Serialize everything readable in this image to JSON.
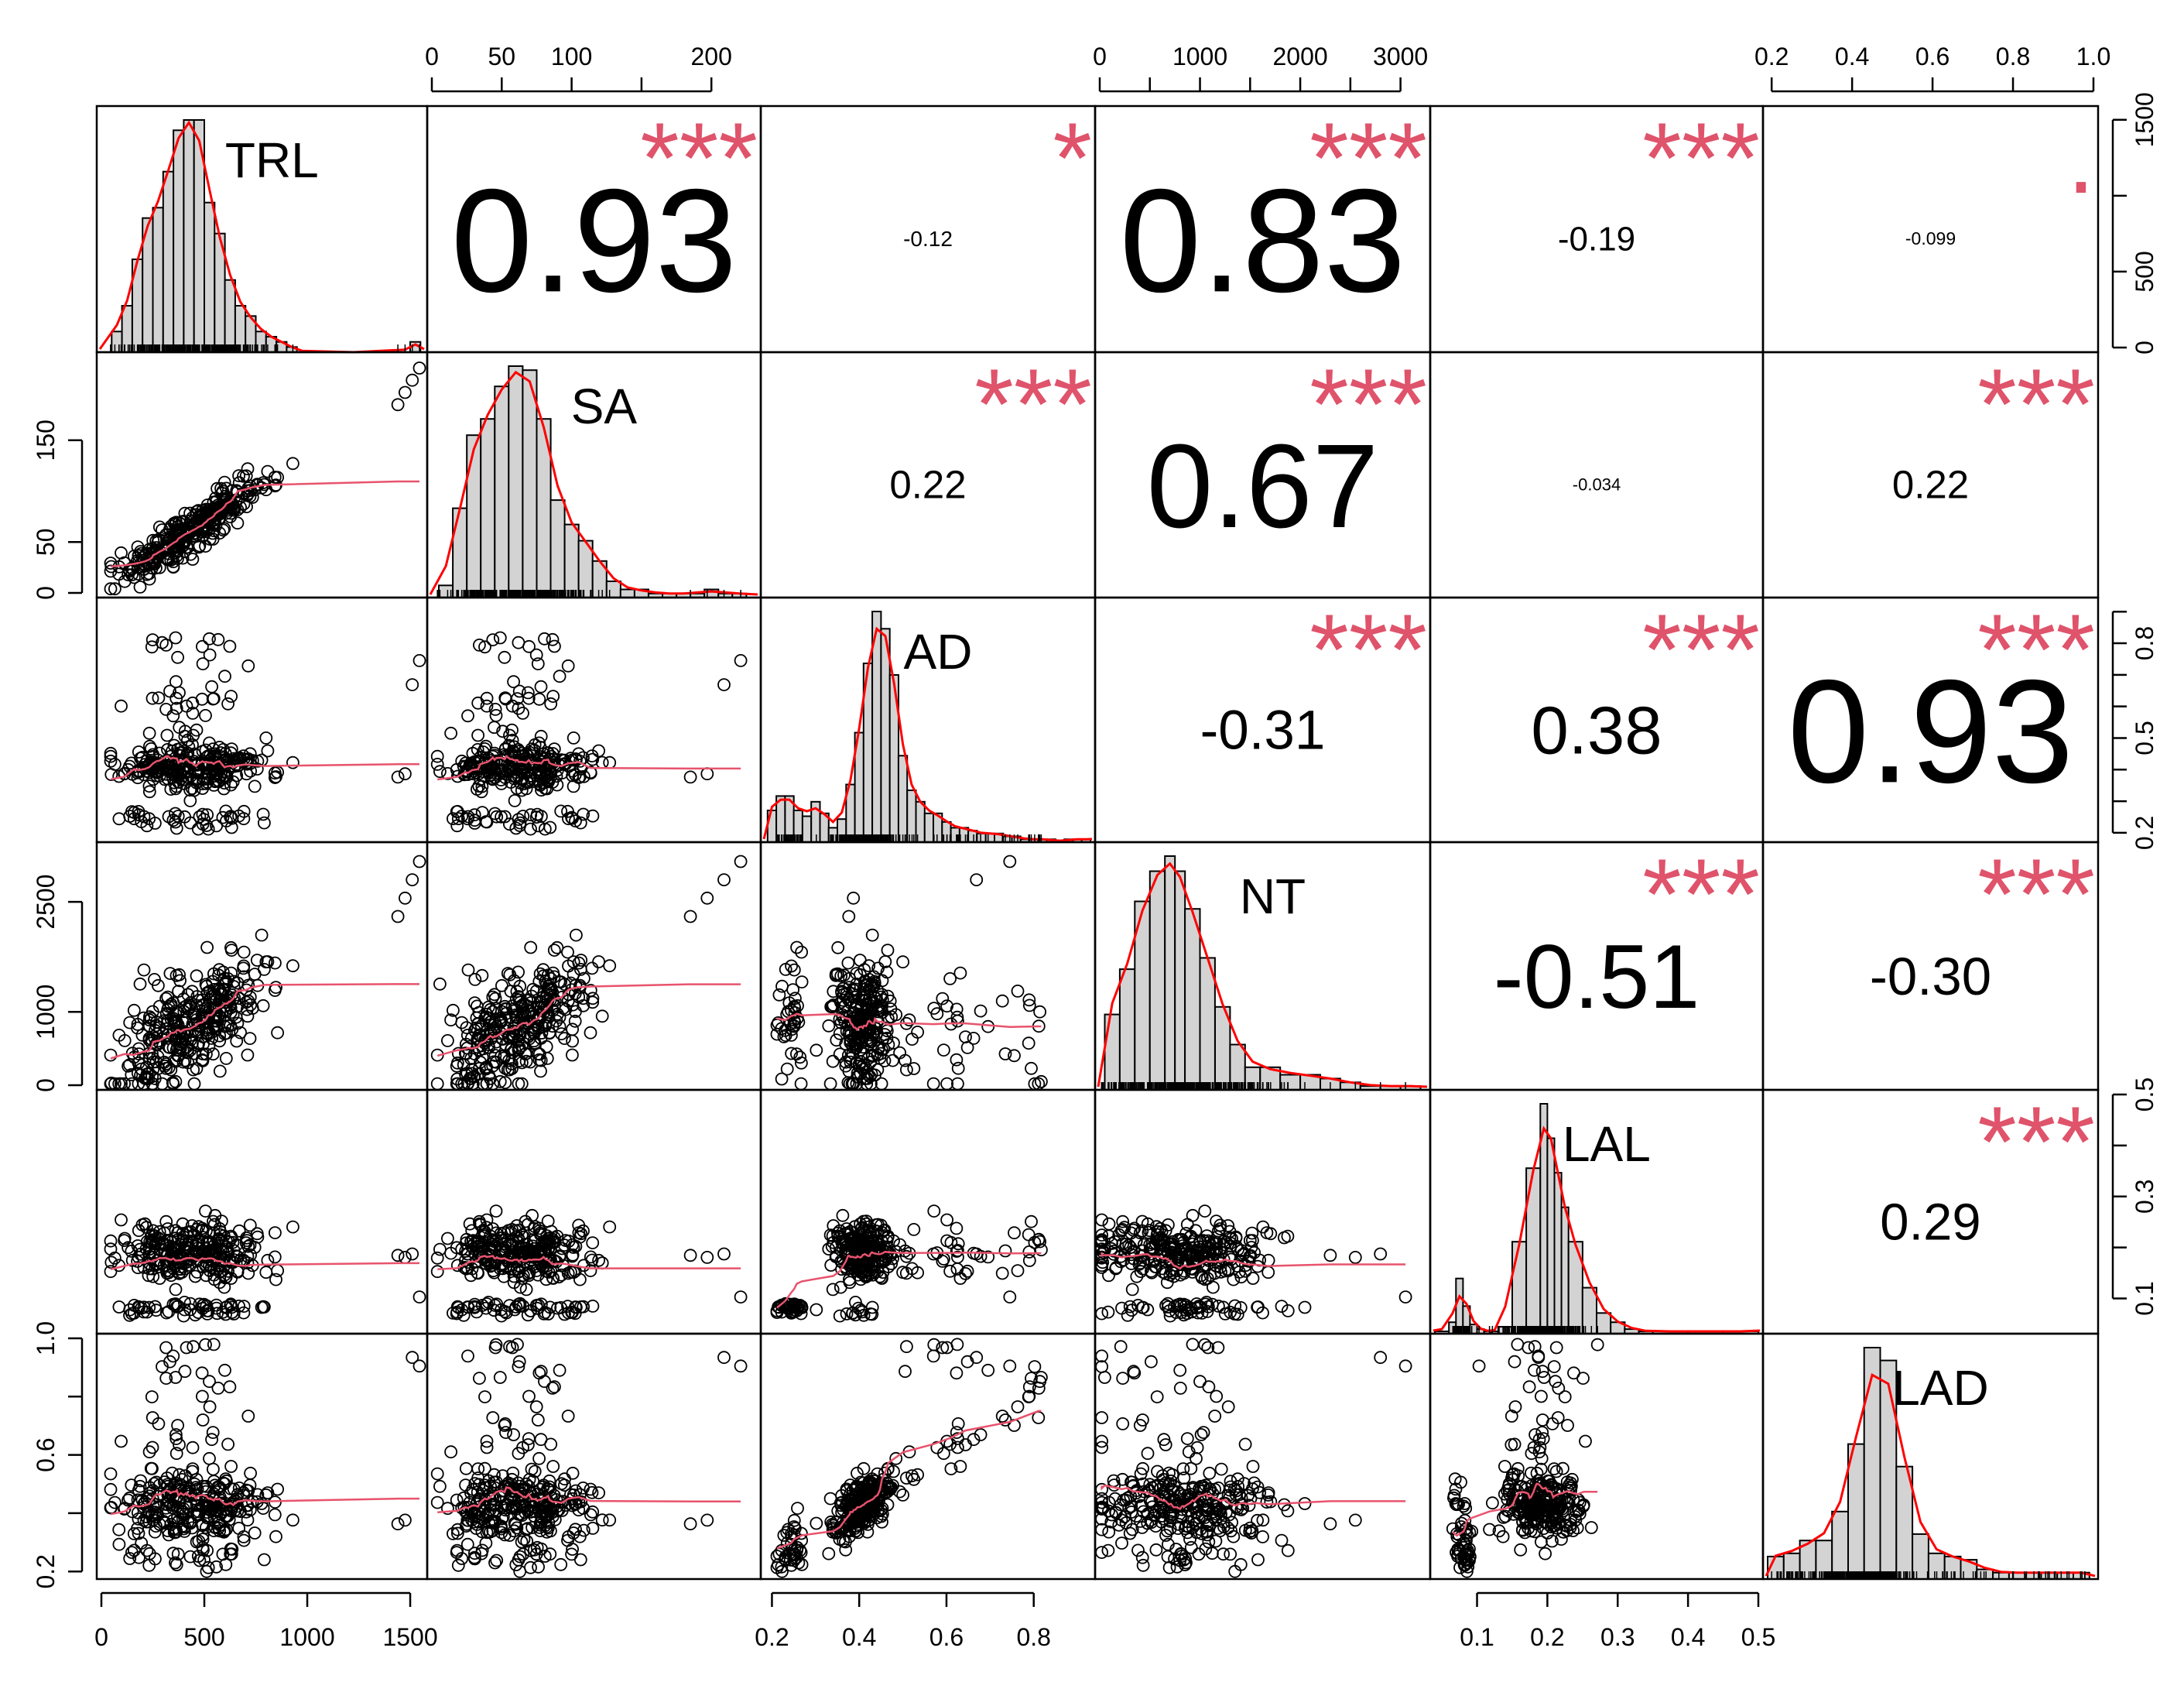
{
  "chart_data": {
    "type": "scatter-matrix",
    "variables": [
      "TRL",
      "SA",
      "AD",
      "NT",
      "LAL",
      "LAD"
    ],
    "colors": {
      "hist_fill": "#d3d3d3",
      "smooth": "#ff0000",
      "loess": "#e8536d",
      "stars": "#df536b",
      "points": "#000000",
      "text": "#000000"
    },
    "axes": {
      "TRL": {
        "range": [
          0,
          1560
        ],
        "ticks": [
          0,
          500,
          1000,
          1500
        ],
        "tick_labels": [
          "0",
          "500",
          "1000",
          "1500"
        ]
      },
      "SA": {
        "range": [
          0,
          232
        ],
        "ticks": [
          0,
          50,
          150
        ],
        "tick_labels": [
          "0",
          "50",
          "150"
        ],
        "top_ticks": [
          0,
          50,
          100,
          150,
          200
        ],
        "top_tick_labels": [
          "0",
          "50",
          "100",
          "",
          "200"
        ]
      },
      "AD": {
        "range": [
          0.185,
          0.93
        ],
        "ticks": [
          0.2,
          0.4,
          0.6,
          0.8
        ],
        "tick_labels": [
          "0.2",
          "0.4",
          "0.6",
          "0.8"
        ],
        "right_ticks": [
          0.2,
          0.3,
          0.4,
          0.5,
          0.6,
          0.7,
          0.8,
          0.9
        ],
        "right_tick_labels": [
          "0.2",
          "",
          "",
          "0.5",
          "",
          "",
          "0.8",
          ""
        ]
      },
      "NT": {
        "range": [
          0,
          3250
        ],
        "ticks": [
          0,
          1000,
          2500
        ],
        "tick_labels": [
          "0",
          "1000",
          "2500"
        ],
        "top_ticks": [
          0,
          500,
          1000,
          1500,
          2000,
          2500,
          3000
        ],
        "top_tick_labels": [
          "0",
          "",
          "1000",
          "",
          "2000",
          "",
          "3000"
        ]
      },
      "LAL": {
        "range": [
          0.04,
          0.5
        ],
        "ticks": [
          0.1,
          0.2,
          0.3,
          0.4,
          0.5
        ],
        "tick_labels": [
          "0.1",
          "0.2",
          "0.3",
          "0.4",
          "0.5"
        ],
        "right_ticks": [
          0.1,
          0.2,
          0.3,
          0.4,
          0.5
        ],
        "right_tick_labels": [
          "0.1",
          "",
          "0.3",
          "",
          "0.5"
        ]
      },
      "LAD": {
        "range": [
          0.19,
          1.0
        ],
        "ticks": [
          0.2,
          0.6,
          1.0
        ],
        "tick_labels": [
          "0.2",
          "0.6",
          "1.0"
        ],
        "left_ticks": [
          0.2,
          0.4,
          0.6,
          0.8,
          1.0
        ],
        "left_tick_labels": [
          "0.2",
          "",
          "0.6",
          "",
          "1.0"
        ],
        "top_ticks": [
          0.2,
          0.4,
          0.6,
          0.8,
          1.0
        ],
        "top_tick_labels": [
          "0.2",
          "0.4",
          "0.6",
          "0.8",
          "1.0"
        ]
      }
    },
    "right_axis_row1": {
      "ticks": [
        0,
        500,
        1000,
        1500
      ],
      "tick_labels": [
        "0",
        "500",
        "",
        "1500"
      ]
    },
    "correlations": [
      {
        "row": 0,
        "col": 1,
        "r": "0.93",
        "stars": "***"
      },
      {
        "row": 0,
        "col": 2,
        "r": "-0.12",
        "stars": "*"
      },
      {
        "row": 0,
        "col": 3,
        "r": "0.83",
        "stars": "***"
      },
      {
        "row": 0,
        "col": 4,
        "r": "-0.19",
        "stars": "***"
      },
      {
        "row": 0,
        "col": 5,
        "r": "-0.099",
        "stars": "."
      },
      {
        "row": 1,
        "col": 2,
        "r": "0.22",
        "stars": "***"
      },
      {
        "row": 1,
        "col": 3,
        "r": "0.67",
        "stars": "***"
      },
      {
        "row": 1,
        "col": 4,
        "r": "-0.034",
        "stars": ""
      },
      {
        "row": 1,
        "col": 5,
        "r": "0.22",
        "stars": "***"
      },
      {
        "row": 2,
        "col": 3,
        "r": "-0.31",
        "stars": "***"
      },
      {
        "row": 2,
        "col": 4,
        "r": "0.38",
        "stars": "***"
      },
      {
        "row": 2,
        "col": 5,
        "r": "0.93",
        "stars": "***"
      },
      {
        "row": 3,
        "col": 4,
        "r": "-0.51",
        "stars": "***"
      },
      {
        "row": 3,
        "col": 5,
        "r": "-0.30",
        "stars": "***"
      },
      {
        "row": 4,
        "col": 5,
        "r": "0.29",
        "stars": "***"
      }
    ],
    "histograms": [
      {
        "var": "TRL",
        "edges": [
          50,
          100,
          150,
          200,
          250,
          300,
          350,
          400,
          450,
          500,
          550,
          600,
          650,
          700,
          750,
          800,
          850,
          900,
          950,
          1000,
          1450,
          1500,
          1550
        ],
        "counts": [
          4,
          9,
          18,
          26,
          28,
          35,
          43,
          45,
          45,
          29,
          23,
          14,
          9,
          7,
          4,
          3,
          2,
          1,
          0,
          0,
          0,
          2
        ]
      },
      {
        "var": "SA",
        "edges": [
          5,
          15,
          25,
          35,
          45,
          55,
          65,
          75,
          85,
          95,
          105,
          115,
          125,
          135,
          145,
          155,
          165,
          175,
          185,
          195,
          205,
          215,
          225
        ],
        "counts": [
          3,
          22,
          40,
          44,
          52,
          57,
          56,
          44,
          24,
          18,
          14,
          9,
          4,
          2,
          2,
          1,
          1,
          1,
          1,
          2,
          1,
          1
        ]
      },
      {
        "var": "AD",
        "edges": [
          0.19,
          0.21,
          0.23,
          0.25,
          0.27,
          0.29,
          0.31,
          0.33,
          0.35,
          0.37,
          0.39,
          0.41,
          0.43,
          0.45,
          0.47,
          0.49,
          0.51,
          0.53,
          0.55,
          0.57,
          0.59,
          0.61,
          0.63,
          0.65,
          0.67,
          0.69,
          0.71,
          0.73,
          0.75,
          0.77,
          0.79,
          0.81,
          0.83,
          0.85,
          0.87,
          0.89,
          0.91,
          0.93
        ],
        "counts": [
          11,
          16,
          16,
          11,
          9,
          14,
          10,
          5,
          8,
          20,
          38,
          62,
          80,
          74,
          58,
          30,
          18,
          14,
          10,
          10,
          7,
          5,
          5,
          4,
          3,
          3,
          3,
          2,
          2,
          1,
          1,
          1,
          1,
          0,
          1,
          1,
          1
        ]
      },
      {
        "var": "NT",
        "edges": [
          50,
          200,
          350,
          500,
          650,
          750,
          850,
          1000,
          1150,
          1300,
          1450,
          1600,
          1800,
          2000,
          2200,
          2400,
          2600,
          2800,
          3000,
          3200
        ],
        "counts": [
          20,
          32,
          50,
          58,
          62,
          58,
          48,
          35,
          22,
          12,
          6,
          6,
          4,
          4,
          3,
          2,
          1,
          1,
          1
        ]
      },
      {
        "var": "LAL",
        "edges": [
          0.04,
          0.06,
          0.07,
          0.08,
          0.09,
          0.1,
          0.11,
          0.12,
          0.13,
          0.15,
          0.17,
          0.19,
          0.2,
          0.21,
          0.22,
          0.23,
          0.25,
          0.27,
          0.29,
          0.31,
          0.33,
          0.35,
          0.4,
          0.45,
          0.5
        ],
        "counts": [
          1,
          5,
          24,
          12,
          4,
          2,
          1,
          1,
          3,
          40,
          72,
          100,
          85,
          70,
          55,
          40,
          20,
          9,
          5,
          2,
          1,
          1,
          1,
          1
        ]
      },
      {
        "var": "LAD",
        "edges": [
          0.19,
          0.23,
          0.27,
          0.31,
          0.35,
          0.39,
          0.43,
          0.47,
          0.51,
          0.55,
          0.59,
          0.63,
          0.67,
          0.71,
          0.75,
          0.79,
          0.83,
          0.87,
          0.91,
          0.95,
          0.99
        ],
        "counts": [
          7,
          8,
          12,
          12,
          21,
          42,
          72,
          68,
          35,
          14,
          8,
          7,
          6,
          3,
          2,
          2,
          2,
          2,
          2,
          2
        ]
      }
    ]
  }
}
